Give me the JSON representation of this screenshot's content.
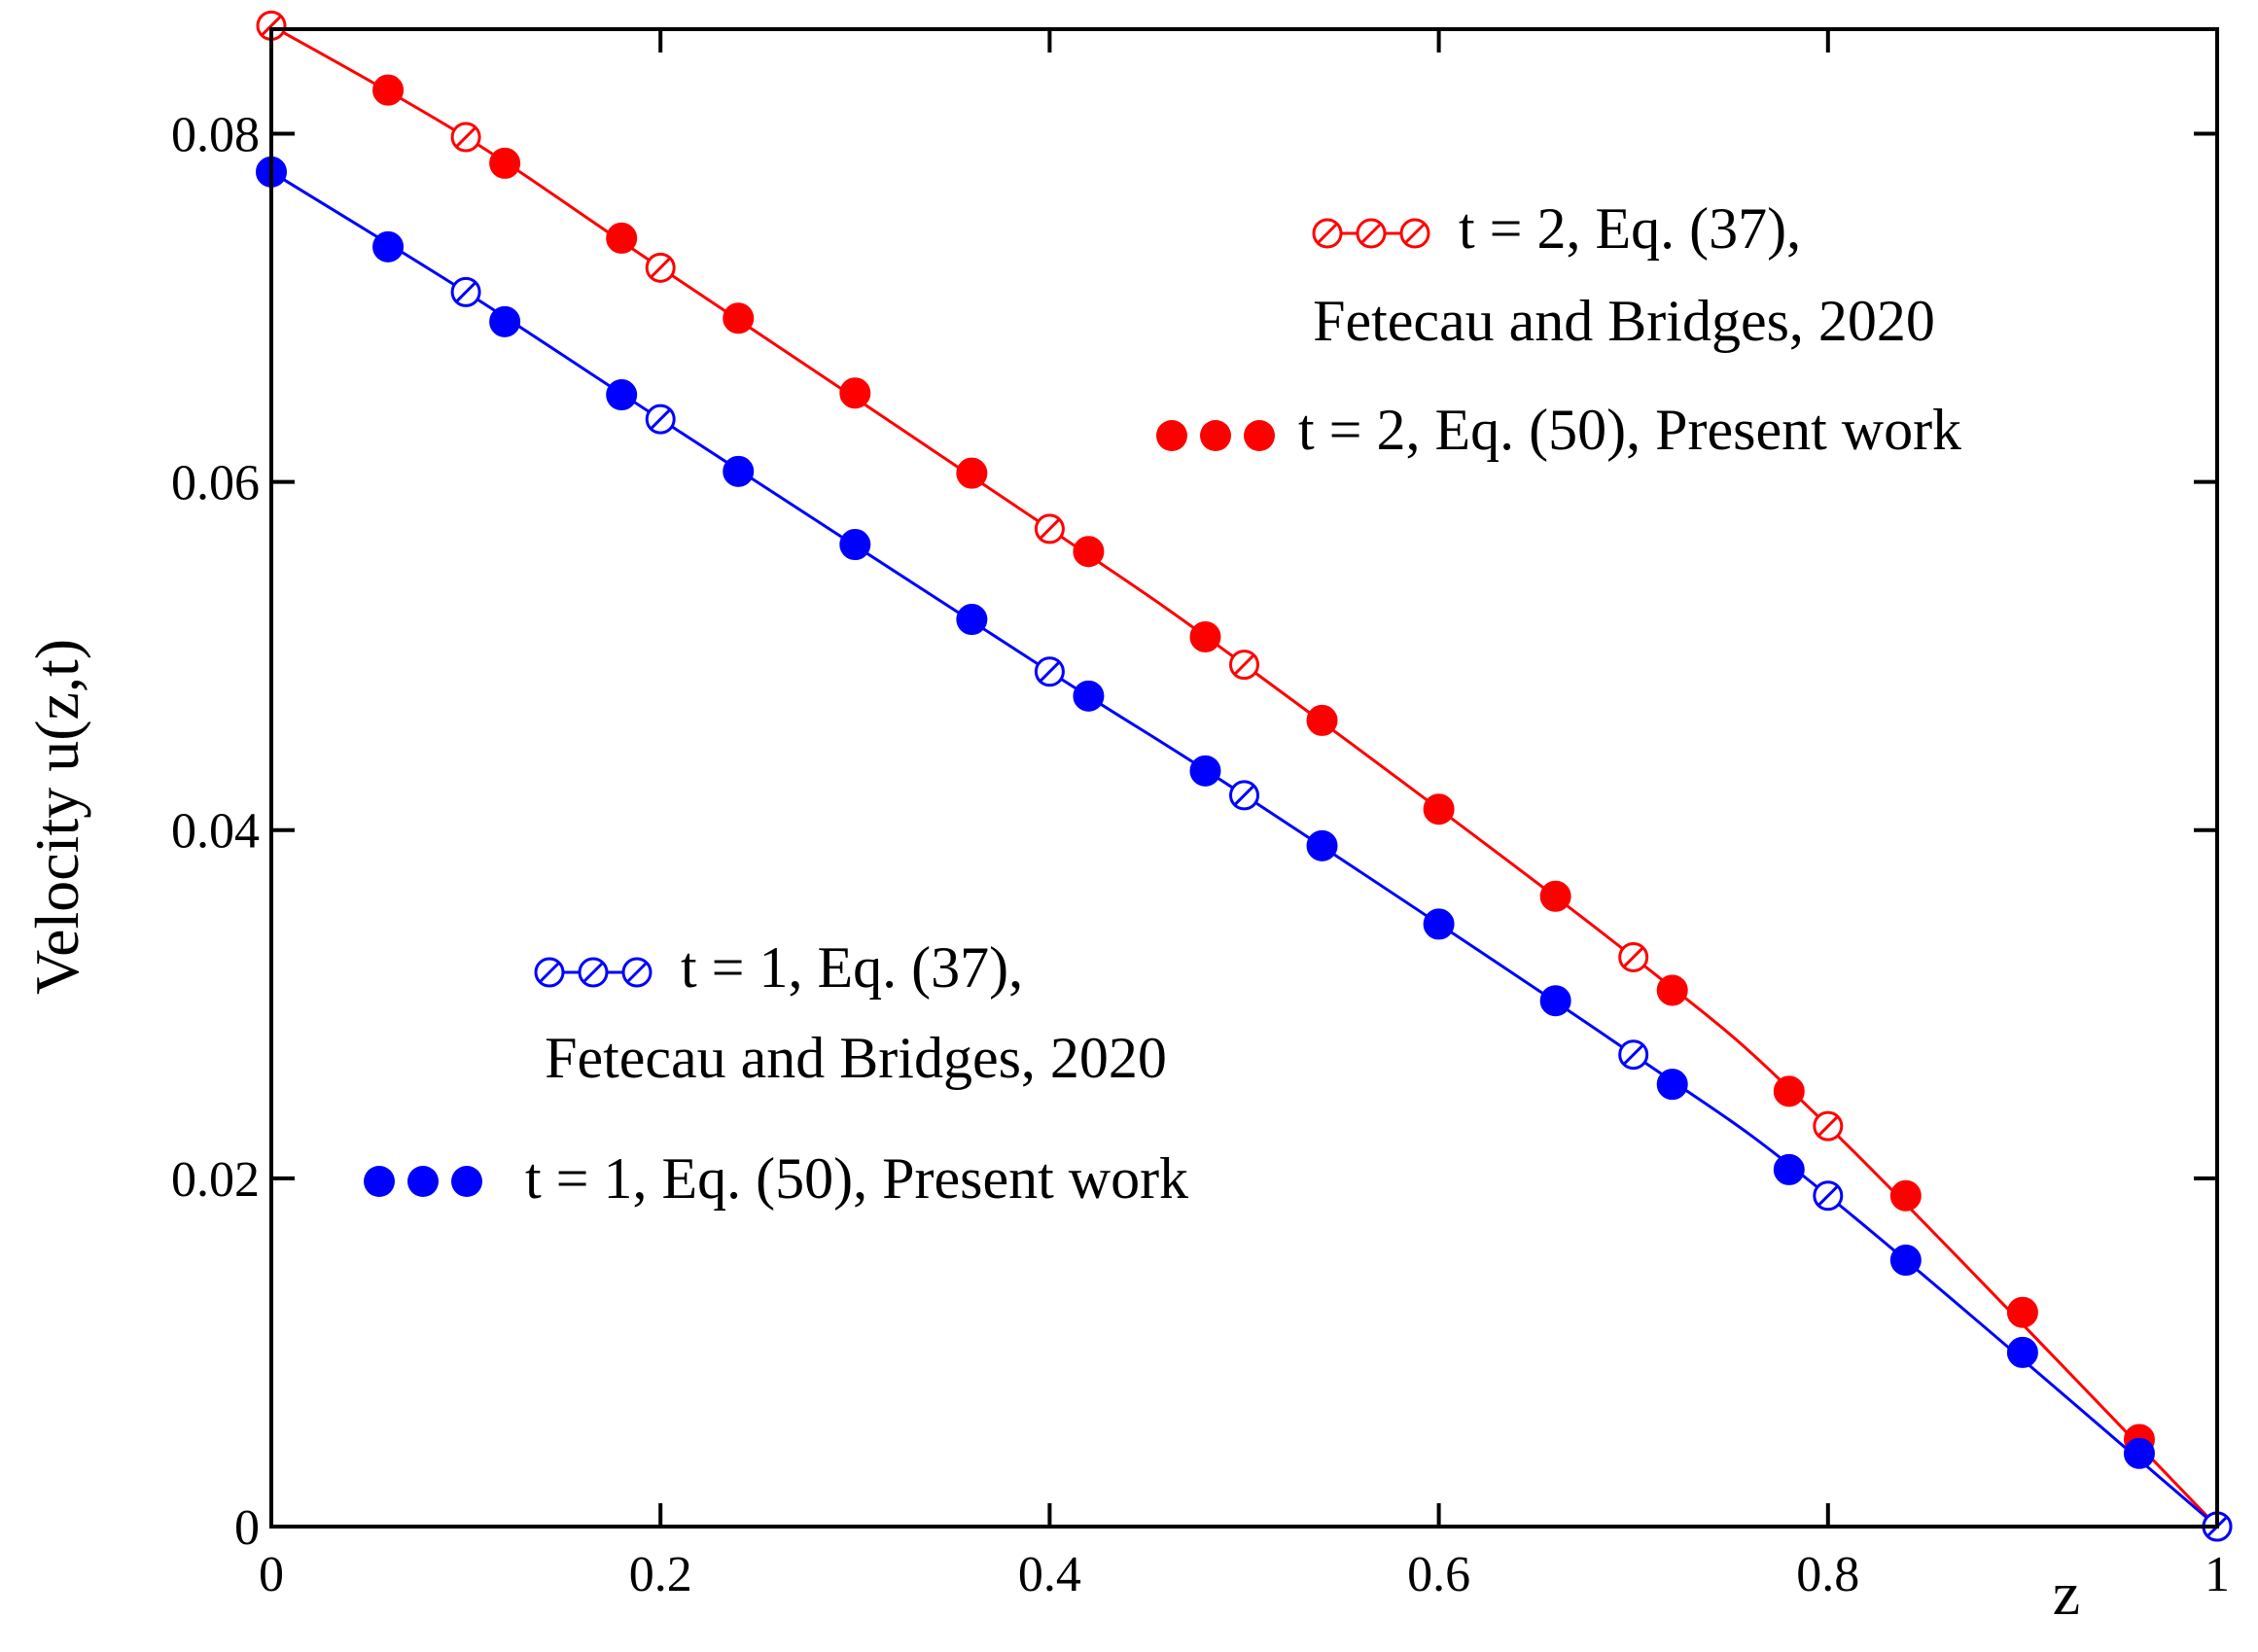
{
  "chart_data": {
    "type": "line",
    "title": "",
    "xlabel": "z",
    "ylabel": "Velocity u(z,t)",
    "xlim": [
      0,
      1
    ],
    "ylim": [
      0,
      0.086
    ],
    "x_ticks": [
      0,
      0.2,
      0.4,
      0.6,
      0.8,
      1
    ],
    "x_tick_labels": [
      "0",
      "0.2",
      "0.4",
      "0.6",
      "0.8",
      "1"
    ],
    "y_ticks": [
      0,
      0.02,
      0.04,
      0.06,
      0.08
    ],
    "y_tick_labels": [
      "0",
      "0.02",
      "0.04",
      "0.06",
      "0.08"
    ],
    "grid": false,
    "series": [
      {
        "name": "t = 2, Eq. (37), Fetecau and Bridges, 2020",
        "legend_lines": [
          "t = 2, Eq. (37),",
          "Fetecau and Bridges, 2020"
        ],
        "color": "#ff0000",
        "marker": "open-circle",
        "line": true,
        "x": [
          0,
          0.1,
          0.2,
          0.4,
          0.5,
          0.7,
          0.8,
          1.0
        ],
        "y": [
          0.0862,
          0.0798,
          0.0723,
          0.0573,
          0.0495,
          0.0327,
          0.023,
          0.0
        ]
      },
      {
        "name": "t = 2, Eq. (50), Present work",
        "legend_lines": [
          "t = 2, Eq. (50), Present work"
        ],
        "color": "#ff0000",
        "marker": "filled-circle",
        "line": false,
        "x": [
          0.06,
          0.12,
          0.18,
          0.24,
          0.3,
          0.36,
          0.42,
          0.48,
          0.54,
          0.6,
          0.66,
          0.72,
          0.78,
          0.84,
          0.9,
          0.96
        ],
        "y": [
          0.0825,
          0.0783,
          0.074,
          0.0694,
          0.0651,
          0.0605,
          0.056,
          0.0511,
          0.0463,
          0.0412,
          0.0362,
          0.0308,
          0.025,
          0.019,
          0.0123,
          0.005
        ]
      },
      {
        "name": "t = 1, Eq. (37), Fetecau and Bridges, 2020",
        "legend_lines": [
          "t = 1, Eq. (37),",
          "Fetecau and Bridges, 2020"
        ],
        "color": "#0000ff",
        "marker": "open-circle",
        "line": true,
        "x": [
          0,
          0.1,
          0.2,
          0.4,
          0.5,
          0.7,
          0.8,
          1.0
        ],
        "y": [
          0.0778,
          0.0709,
          0.0636,
          0.0491,
          0.042,
          0.0271,
          0.019,
          0.0
        ]
      },
      {
        "name": "t = 1, Eq. (50), Present work",
        "legend_lines": [
          "t = 1, Eq. (50), Present work"
        ],
        "color": "#0000ff",
        "marker": "filled-circle",
        "line": false,
        "x": [
          0,
          0.06,
          0.12,
          0.18,
          0.24,
          0.3,
          0.36,
          0.42,
          0.48,
          0.54,
          0.6,
          0.66,
          0.72,
          0.78,
          0.84,
          0.9,
          0.96
        ],
        "y": [
          0.0778,
          0.0735,
          0.0692,
          0.065,
          0.0606,
          0.0564,
          0.0521,
          0.0477,
          0.0434,
          0.0391,
          0.0346,
          0.0302,
          0.0254,
          0.0205,
          0.0153,
          0.01,
          0.0042
        ]
      }
    ]
  }
}
